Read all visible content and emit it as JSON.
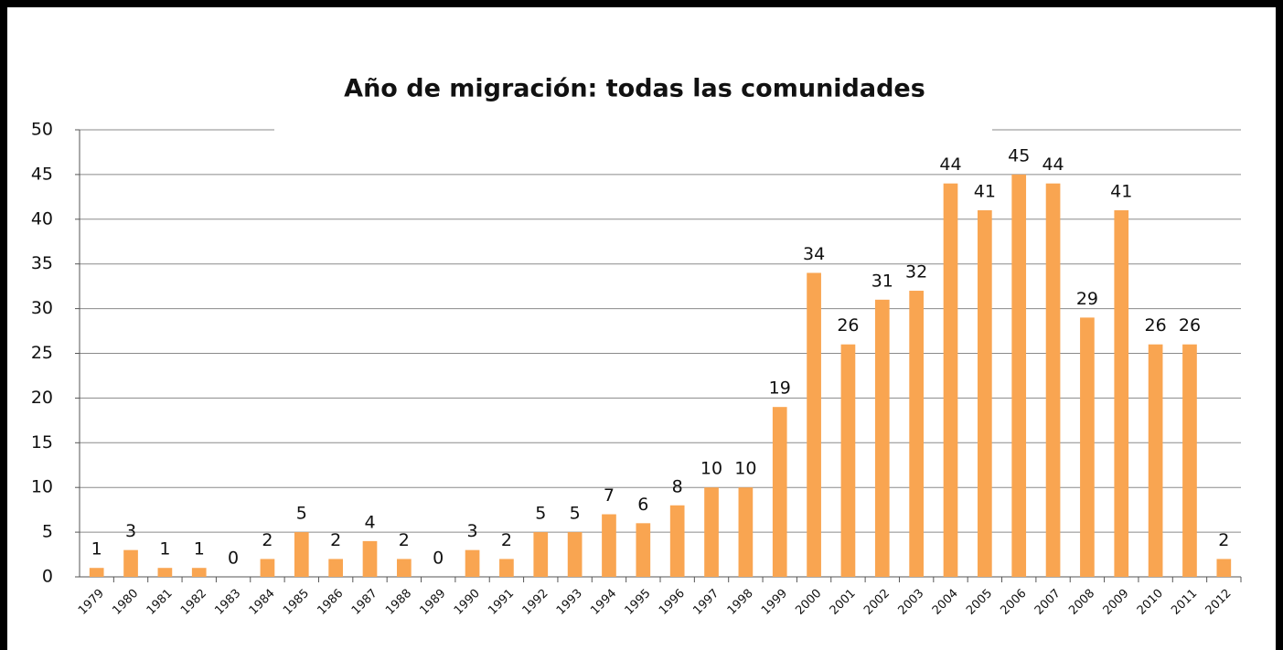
{
  "chart_data": {
    "type": "bar",
    "title": "Año de migración: todas las comunidades",
    "categories": [
      "1979",
      "1980",
      "1981",
      "1982",
      "1983",
      "1984",
      "1985",
      "1986",
      "1987",
      "1988",
      "1989",
      "1990",
      "1991",
      "1992",
      "1993",
      "1994",
      "1995",
      "1996",
      "1997",
      "1998",
      "1999",
      "2000",
      "2001",
      "2002",
      "2003",
      "2004",
      "2005",
      "2006",
      "2007",
      "2008",
      "2009",
      "2010",
      "2011",
      "2012"
    ],
    "values": [
      1,
      3,
      1,
      1,
      0,
      2,
      5,
      2,
      4,
      2,
      0,
      3,
      2,
      5,
      5,
      7,
      6,
      8,
      10,
      10,
      19,
      34,
      26,
      31,
      32,
      44,
      41,
      45,
      44,
      29,
      41,
      26,
      26,
      2
    ],
    "color": "#f9a551",
    "ylim": [
      0,
      50
    ],
    "yticks": [
      0,
      5,
      10,
      15,
      20,
      25,
      30,
      35,
      40,
      45,
      50
    ],
    "grid": true
  }
}
